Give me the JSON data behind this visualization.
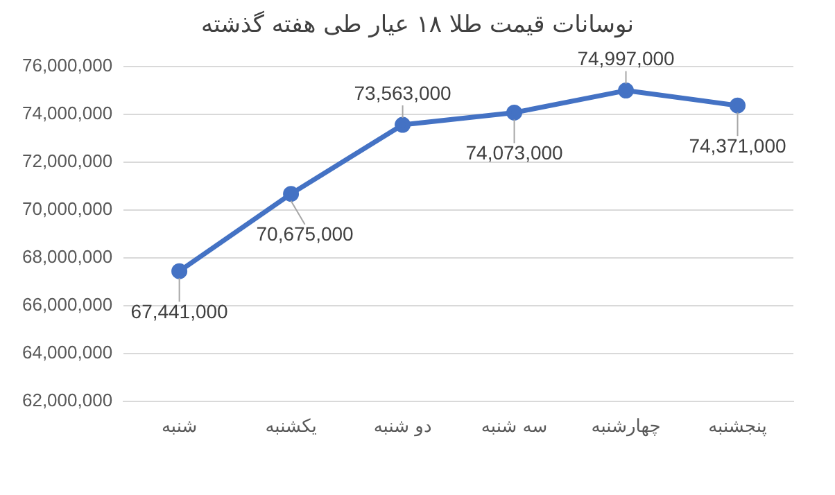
{
  "chart_data": {
    "type": "line",
    "title": "نوسانات قیمت طلا ۱۸ عیار طی هفته گذشته",
    "categories": [
      "شنبه",
      "یکشنبه",
      "دو شنبه",
      "سه شنبه",
      "چهارشنبه",
      "پنجشنبه"
    ],
    "values": [
      67441000,
      70675000,
      73563000,
      74073000,
      74997000,
      74371000
    ],
    "value_labels": [
      "67,441,000",
      "70,675,000",
      "73,563,000",
      "74,073,000",
      "74,997,000",
      "74,371,000"
    ],
    "color": "#4472c4",
    "marker": "circle",
    "line_style": "solid",
    "ylim": [
      62000000,
      76000000
    ],
    "yticks": [
      {
        "value": 62000000,
        "label": "62,000,000"
      },
      {
        "value": 64000000,
        "label": "64,000,000"
      },
      {
        "value": 66000000,
        "label": "66,000,000"
      },
      {
        "value": 68000000,
        "label": "68,000,000"
      },
      {
        "value": 70000000,
        "label": "70,000,000"
      },
      {
        "value": 72000000,
        "label": "72,000,000"
      },
      {
        "value": 74000000,
        "label": "74,000,000"
      },
      {
        "value": 76000000,
        "label": "76,000,000"
      }
    ],
    "grid": "y",
    "legend": false
  }
}
